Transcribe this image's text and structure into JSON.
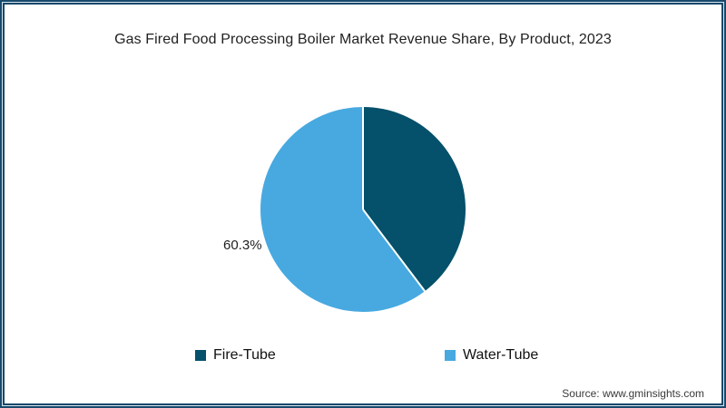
{
  "page": {
    "source_note": "Source: www.gminsights.com"
  },
  "colors": {
    "frame_border": "#17496b",
    "frame_border_inner_line": "#d9e8f1",
    "slice_fire_tube": "#05506a",
    "slice_water_tube": "#47a9e0",
    "text": "#212121"
  },
  "chart_data": {
    "type": "pie",
    "title": "Gas Fired Food Processing Boiler Market Revenue Share, By Product, 2023",
    "labels": [
      "Fire-Tube",
      "Water-Tube"
    ],
    "values": [
      39.7,
      60.3
    ],
    "colors": [
      "#05506a",
      "#47a9e0"
    ],
    "displayed_percent_label": "60.3%",
    "start_angle_deg": 0,
    "direction": "clockwise",
    "legend_position": "bottom",
    "divider_color": "#ffffff"
  }
}
